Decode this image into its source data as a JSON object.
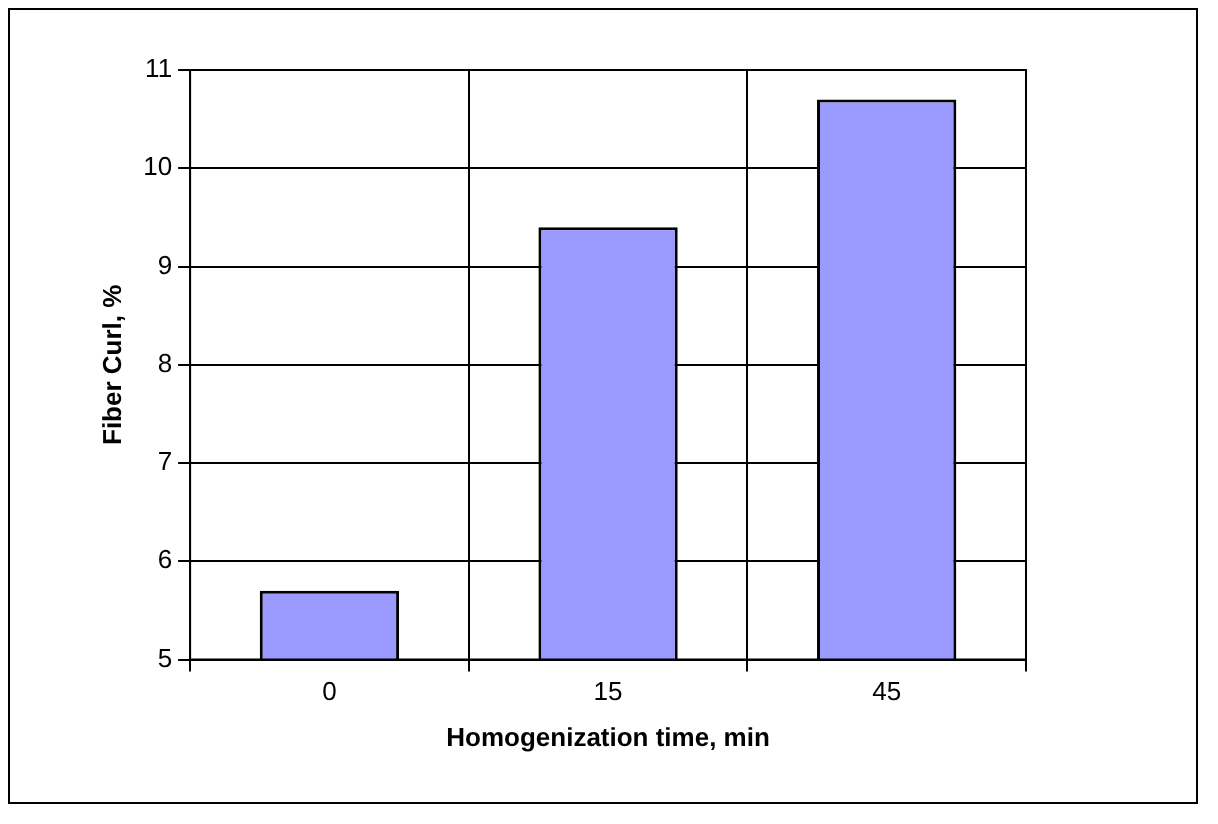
{
  "chart_data": {
    "type": "bar",
    "xlabel": "Homogenization time, min",
    "ylabel": "Fiber Curl, %",
    "categories": [
      "0",
      "15",
      "45"
    ],
    "values": [
      5.7,
      9.4,
      10.7
    ],
    "color": "#9999ff",
    "ylim": [
      5,
      11
    ],
    "yticks": [
      5,
      6,
      7,
      8,
      9,
      10,
      11
    ],
    "grid": true,
    "legend": false
  }
}
